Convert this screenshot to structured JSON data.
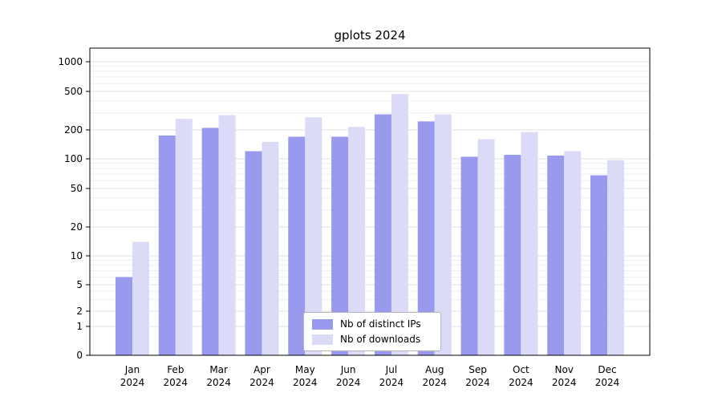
{
  "chart_data": {
    "type": "bar",
    "title": "gplots 2024",
    "categories": [
      "Jan",
      "Feb",
      "Mar",
      "Apr",
      "May",
      "Jun",
      "Jul",
      "Aug",
      "Sep",
      "Oct",
      "Nov",
      "Dec"
    ],
    "year_label": "2024",
    "series": [
      {
        "name": "Nb of distinct IPs",
        "color": "#9999ed",
        "values": [
          6,
          175,
          210,
          120,
          170,
          170,
          290,
          245,
          105,
          110,
          108,
          68
        ]
      },
      {
        "name": "Nb of downloads",
        "color": "#dbdbf7",
        "values": [
          14,
          260,
          285,
          150,
          270,
          215,
          470,
          290,
          160,
          190,
          120,
          97
        ]
      }
    ],
    "yticks": [
      0,
      1,
      2,
      5,
      10,
      20,
      50,
      100,
      200,
      500,
      1000
    ],
    "yscale": "log",
    "ylim": [
      0,
      1000
    ],
    "grid": true,
    "legend_position": "bottom-center"
  }
}
